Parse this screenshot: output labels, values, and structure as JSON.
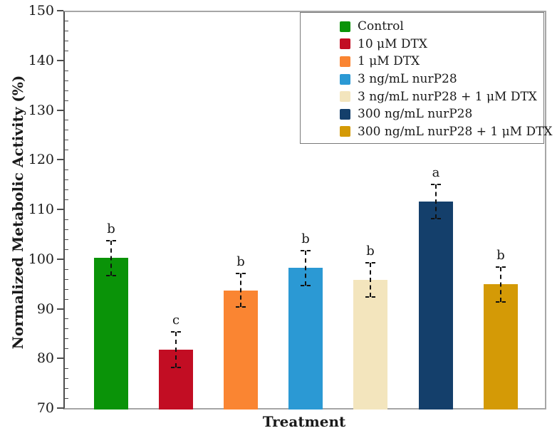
{
  "chart_data": {
    "type": "bar",
    "title": "",
    "xlabel": "Treatment",
    "ylabel": "Normalized Metabolic Activity (%)",
    "ylim": [
      70,
      150
    ],
    "yticks": [
      70,
      80,
      90,
      100,
      110,
      120,
      130,
      140,
      150
    ],
    "minor_tick_step": 2,
    "grid": false,
    "legend_position": "top-right-inside",
    "categories": [
      "Control",
      "10 μM DTX",
      "1 μM DTX",
      "3 ng/mL nurP28",
      "3 ng/mL nurP28 + 1 μM DTX",
      "300 ng/mL nurP28",
      "300 ng/mL nurP28 + 1 μM DTX"
    ],
    "values": [
      100.2,
      81.8,
      93.7,
      98.2,
      95.8,
      111.6,
      94.9
    ],
    "errors": [
      3.5,
      3.6,
      3.4,
      3.5,
      3.5,
      3.4,
      3.5
    ],
    "sig_letters": [
      "b",
      "c",
      "b",
      "b",
      "b",
      "a",
      "b"
    ],
    "colors": [
      "#0a9308",
      "#c20d23",
      "#fa8532",
      "#2b99d4",
      "#f3e5bd",
      "#143f6b",
      "#d49a06"
    ],
    "error_bar_style": "dashed",
    "frame_color": "#a6a6a6",
    "axis_color": "#4d4d4d"
  }
}
